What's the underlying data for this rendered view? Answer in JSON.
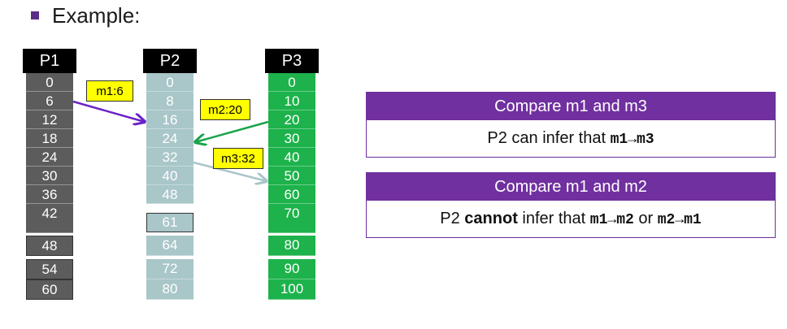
{
  "heading": "Example:",
  "processes": [
    {
      "label": "P1",
      "clocks": [
        "0",
        "6",
        "12",
        "18",
        "24",
        "30",
        "36",
        "42",
        "48",
        "54",
        "60"
      ]
    },
    {
      "label": "P2",
      "clocks": [
        "0",
        "8",
        "16",
        "24",
        "32",
        "40",
        "48",
        "61",
        "64",
        "72",
        "80"
      ]
    },
    {
      "label": "P3",
      "clocks": [
        "0",
        "10",
        "20",
        "30",
        "40",
        "50",
        "60",
        "70",
        "80",
        "90",
        "100"
      ]
    }
  ],
  "messages": [
    {
      "label": "m1:6"
    },
    {
      "label": "m2:20"
    },
    {
      "label": "m3:32"
    }
  ],
  "colors": {
    "p1": "#5c5c5c",
    "p2": "#a9c6c8",
    "p3": "#1db24b",
    "m1_arrow": "#6a22c8",
    "m2_arrow": "#1aa34a",
    "m3_arrow": "#a9c6c8",
    "box_header": "#7030a0",
    "message_label": "#ffff00"
  },
  "compare_boxes": [
    {
      "title": "Compare m1 and m3",
      "prefix": "P2 can infer that ",
      "bold": "",
      "mid": "",
      "rel1": "m1→m3",
      "connector": "",
      "rel2": ""
    },
    {
      "title": "Compare m1 and m2",
      "prefix": "P2 ",
      "bold": "cannot",
      "mid": " infer that ",
      "rel1": "m1→m2",
      "connector": " or ",
      "rel2": "m2→m1"
    }
  ]
}
